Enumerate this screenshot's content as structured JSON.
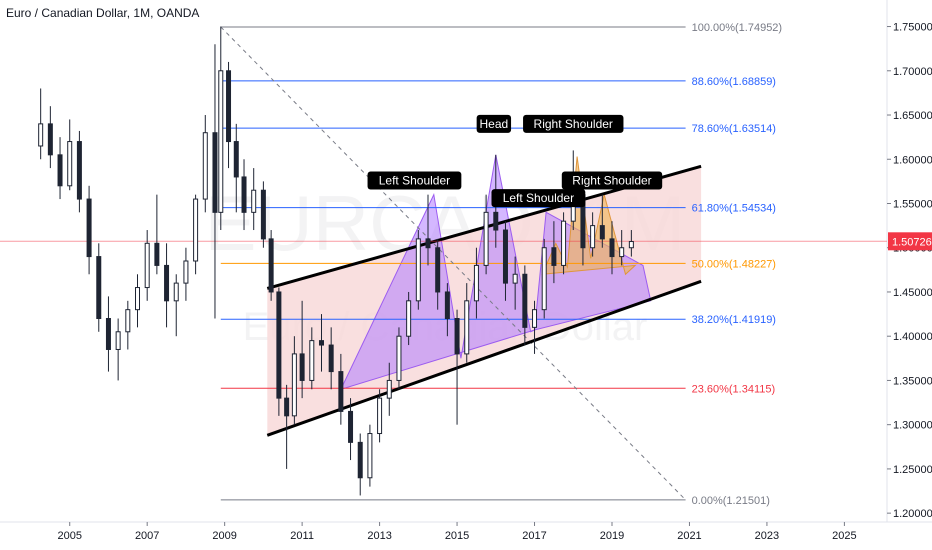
{
  "title": "Euro / Canadian Dollar, 1M, OANDA",
  "watermark": {
    "symbol": "EURCAD, 1M",
    "name": "Euro / Canadian Dollar"
  },
  "current_price": {
    "value": 1.50726,
    "label": "1.50726",
    "color": "#f23645"
  },
  "colors": {
    "up": "#26a69a",
    "down": "#ef5350",
    "candle_up": "#1e2433",
    "candle_down": "#1e2433",
    "fib_100": "#787b86",
    "fib_886": "#2962ff",
    "fib_786": "#2962ff",
    "fib_618": "#2962ff",
    "fib_50": "#ff9800",
    "fib_382": "#2962ff",
    "fib_236": "#f23645",
    "fib_0": "#787b86",
    "channel_fill": "#f8d7d7",
    "pattern_fill": "#b07cff",
    "small_pattern_fill": "#f0b65c"
  },
  "chart_data": {
    "type": "candlestick",
    "title": "Euro / Canadian Dollar, 1M, OANDA",
    "xlabel": "",
    "ylabel": "",
    "x_ticks": [
      "2005",
      "2007",
      "2009",
      "2011",
      "2013",
      "2015",
      "2017",
      "2019",
      "2021",
      "2023",
      "2025"
    ],
    "y_ticks": [
      "1.20000",
      "1.25000",
      "1.30000",
      "1.35000",
      "1.40000",
      "1.45000",
      "1.50000",
      "1.55000",
      "1.60000",
      "1.65000",
      "1.70000",
      "1.75000"
    ],
    "ylim": [
      1.19,
      1.78
    ],
    "xlim": [
      2003.2,
      2026.1
    ],
    "fib_levels": [
      {
        "label": "100.00%(1.74952)",
        "value": 1.74952,
        "key": "fib_100"
      },
      {
        "label": "88.60%(1.68859)",
        "value": 1.68859,
        "key": "fib_886"
      },
      {
        "label": "78.60%(1.63514)",
        "value": 1.63514,
        "key": "fib_786"
      },
      {
        "label": "61.80%(1.54534)",
        "value": 1.54534,
        "key": "fib_618"
      },
      {
        "label": "50.00%(1.48227)",
        "value": 1.48227,
        "key": "fib_50"
      },
      {
        "label": "38.20%(1.41919)",
        "value": 1.41919,
        "key": "fib_382"
      },
      {
        "label": "23.60%(1.34115)",
        "value": 1.34115,
        "key": "fib_236"
      },
      {
        "label": "0.00%(1.21501)",
        "value": 1.21501,
        "key": "fib_0"
      }
    ],
    "fib_start_year": 2008.9,
    "fib_end_year": 2020.9,
    "diagonal": {
      "x1": 2008.9,
      "y1": 1.74952,
      "x2": 2020.9,
      "y2": 1.21501
    },
    "channel": {
      "upper": {
        "x1": 2010.1,
        "y1": 1.454,
        "x2": 2021.3,
        "y2": 1.592
      },
      "lower": {
        "x1": 2010.1,
        "y1": 1.288,
        "x2": 2021.3,
        "y2": 1.462
      }
    },
    "big_pattern": [
      [
        2012.0,
        1.34
      ],
      [
        2014.4,
        1.56
      ],
      [
        2015.1,
        1.375
      ],
      [
        2016.0,
        1.605
      ],
      [
        2016.9,
        1.405
      ],
      [
        2017.0,
        1.407
      ]
    ],
    "small_pattern": [
      [
        2017.2,
        1.47
      ],
      [
        2017.55,
        1.505
      ],
      [
        2017.85,
        1.478
      ],
      [
        2018.1,
        1.603
      ],
      [
        2018.45,
        1.488
      ],
      [
        2018.8,
        1.56
      ],
      [
        2019.35,
        1.47
      ],
      [
        2019.6,
        1.48
      ]
    ],
    "pattern_labels": [
      {
        "text": "Left Shoulder",
        "x": 2013.9,
        "y": 1.576
      },
      {
        "text": "Head",
        "x": 2015.95,
        "y": 1.64
      },
      {
        "text": "Right Shoulder",
        "x": 2018.0,
        "y": 1.64
      },
      {
        "text": "Left Shoulder",
        "x": 2017.1,
        "y": 1.556
      },
      {
        "text": "Right Shoulder",
        "x": 2019.0,
        "y": 1.576
      }
    ],
    "candles": [
      [
        2004.25,
        1.615,
        1.68,
        1.6,
        1.64
      ],
      [
        2004.5,
        1.64,
        1.66,
        1.59,
        1.605
      ],
      [
        2004.75,
        1.605,
        1.625,
        1.555,
        1.57
      ],
      [
        2005.0,
        1.57,
        1.645,
        1.565,
        1.62
      ],
      [
        2005.25,
        1.62,
        1.632,
        1.54,
        1.555
      ],
      [
        2005.5,
        1.555,
        1.57,
        1.47,
        1.49
      ],
      [
        2005.75,
        1.49,
        1.505,
        1.405,
        1.42
      ],
      [
        2006.0,
        1.42,
        1.445,
        1.36,
        1.385
      ],
      [
        2006.25,
        1.385,
        1.42,
        1.35,
        1.405
      ],
      [
        2006.5,
        1.405,
        1.44,
        1.385,
        1.43
      ],
      [
        2006.75,
        1.43,
        1.47,
        1.41,
        1.455
      ],
      [
        2007.0,
        1.455,
        1.52,
        1.44,
        1.505
      ],
      [
        2007.25,
        1.505,
        1.56,
        1.47,
        1.48
      ],
      [
        2007.5,
        1.48,
        1.505,
        1.41,
        1.44
      ],
      [
        2007.75,
        1.44,
        1.47,
        1.4,
        1.46
      ],
      [
        2008.0,
        1.46,
        1.5,
        1.44,
        1.485
      ],
      [
        2008.25,
        1.485,
        1.56,
        1.47,
        1.555
      ],
      [
        2008.5,
        1.555,
        1.65,
        1.54,
        1.63
      ],
      [
        2008.75,
        1.63,
        1.73,
        1.42,
        1.54
      ],
      [
        2008.9,
        1.54,
        1.75,
        1.52,
        1.7
      ],
      [
        2009.1,
        1.7,
        1.71,
        1.59,
        1.62
      ],
      [
        2009.3,
        1.62,
        1.64,
        1.54,
        1.58
      ],
      [
        2009.5,
        1.58,
        1.6,
        1.52,
        1.54
      ],
      [
        2009.75,
        1.54,
        1.59,
        1.52,
        1.565
      ],
      [
        2010.0,
        1.565,
        1.575,
        1.5,
        1.51
      ],
      [
        2010.2,
        1.51,
        1.52,
        1.44,
        1.45
      ],
      [
        2010.4,
        1.45,
        1.455,
        1.31,
        1.33
      ],
      [
        2010.6,
        1.33,
        1.345,
        1.25,
        1.31
      ],
      [
        2010.8,
        1.31,
        1.4,
        1.3,
        1.38
      ],
      [
        2011.0,
        1.38,
        1.44,
        1.33,
        1.35
      ],
      [
        2011.25,
        1.35,
        1.41,
        1.34,
        1.395
      ],
      [
        2011.5,
        1.395,
        1.425,
        1.36,
        1.39
      ],
      [
        2011.75,
        1.39,
        1.41,
        1.34,
        1.36
      ],
      [
        2012.0,
        1.36,
        1.38,
        1.3,
        1.315
      ],
      [
        2012.25,
        1.315,
        1.33,
        1.26,
        1.28
      ],
      [
        2012.5,
        1.28,
        1.29,
        1.22,
        1.24
      ],
      [
        2012.75,
        1.24,
        1.3,
        1.23,
        1.29
      ],
      [
        2013.0,
        1.29,
        1.34,
        1.28,
        1.33
      ],
      [
        2013.25,
        1.33,
        1.37,
        1.31,
        1.35
      ],
      [
        2013.5,
        1.35,
        1.41,
        1.34,
        1.4
      ],
      [
        2013.75,
        1.4,
        1.45,
        1.39,
        1.44
      ],
      [
        2014.0,
        1.44,
        1.52,
        1.43,
        1.51
      ],
      [
        2014.25,
        1.51,
        1.56,
        1.48,
        1.5
      ],
      [
        2014.5,
        1.5,
        1.51,
        1.43,
        1.45
      ],
      [
        2014.75,
        1.45,
        1.46,
        1.4,
        1.42
      ],
      [
        2015.0,
        1.42,
        1.43,
        1.3,
        1.38
      ],
      [
        2015.25,
        1.38,
        1.46,
        1.37,
        1.44
      ],
      [
        2015.5,
        1.44,
        1.5,
        1.42,
        1.48
      ],
      [
        2015.75,
        1.48,
        1.56,
        1.47,
        1.54
      ],
      [
        2016.0,
        1.54,
        1.605,
        1.5,
        1.52
      ],
      [
        2016.25,
        1.52,
        1.53,
        1.44,
        1.46
      ],
      [
        2016.5,
        1.46,
        1.49,
        1.43,
        1.47
      ],
      [
        2016.75,
        1.47,
        1.48,
        1.39,
        1.41
      ],
      [
        2017.0,
        1.41,
        1.44,
        1.38,
        1.43
      ],
      [
        2017.25,
        1.43,
        1.51,
        1.42,
        1.5
      ],
      [
        2017.5,
        1.5,
        1.53,
        1.46,
        1.48
      ],
      [
        2017.75,
        1.48,
        1.54,
        1.47,
        1.53
      ],
      [
        2018.0,
        1.53,
        1.61,
        1.52,
        1.56
      ],
      [
        2018.25,
        1.56,
        1.58,
        1.48,
        1.5
      ],
      [
        2018.5,
        1.5,
        1.54,
        1.49,
        1.525
      ],
      [
        2018.75,
        1.525,
        1.56,
        1.5,
        1.51
      ],
      [
        2019.0,
        1.51,
        1.53,
        1.47,
        1.49
      ],
      [
        2019.25,
        1.49,
        1.52,
        1.48,
        1.5
      ],
      [
        2019.5,
        1.5,
        1.52,
        1.49,
        1.507
      ]
    ]
  }
}
